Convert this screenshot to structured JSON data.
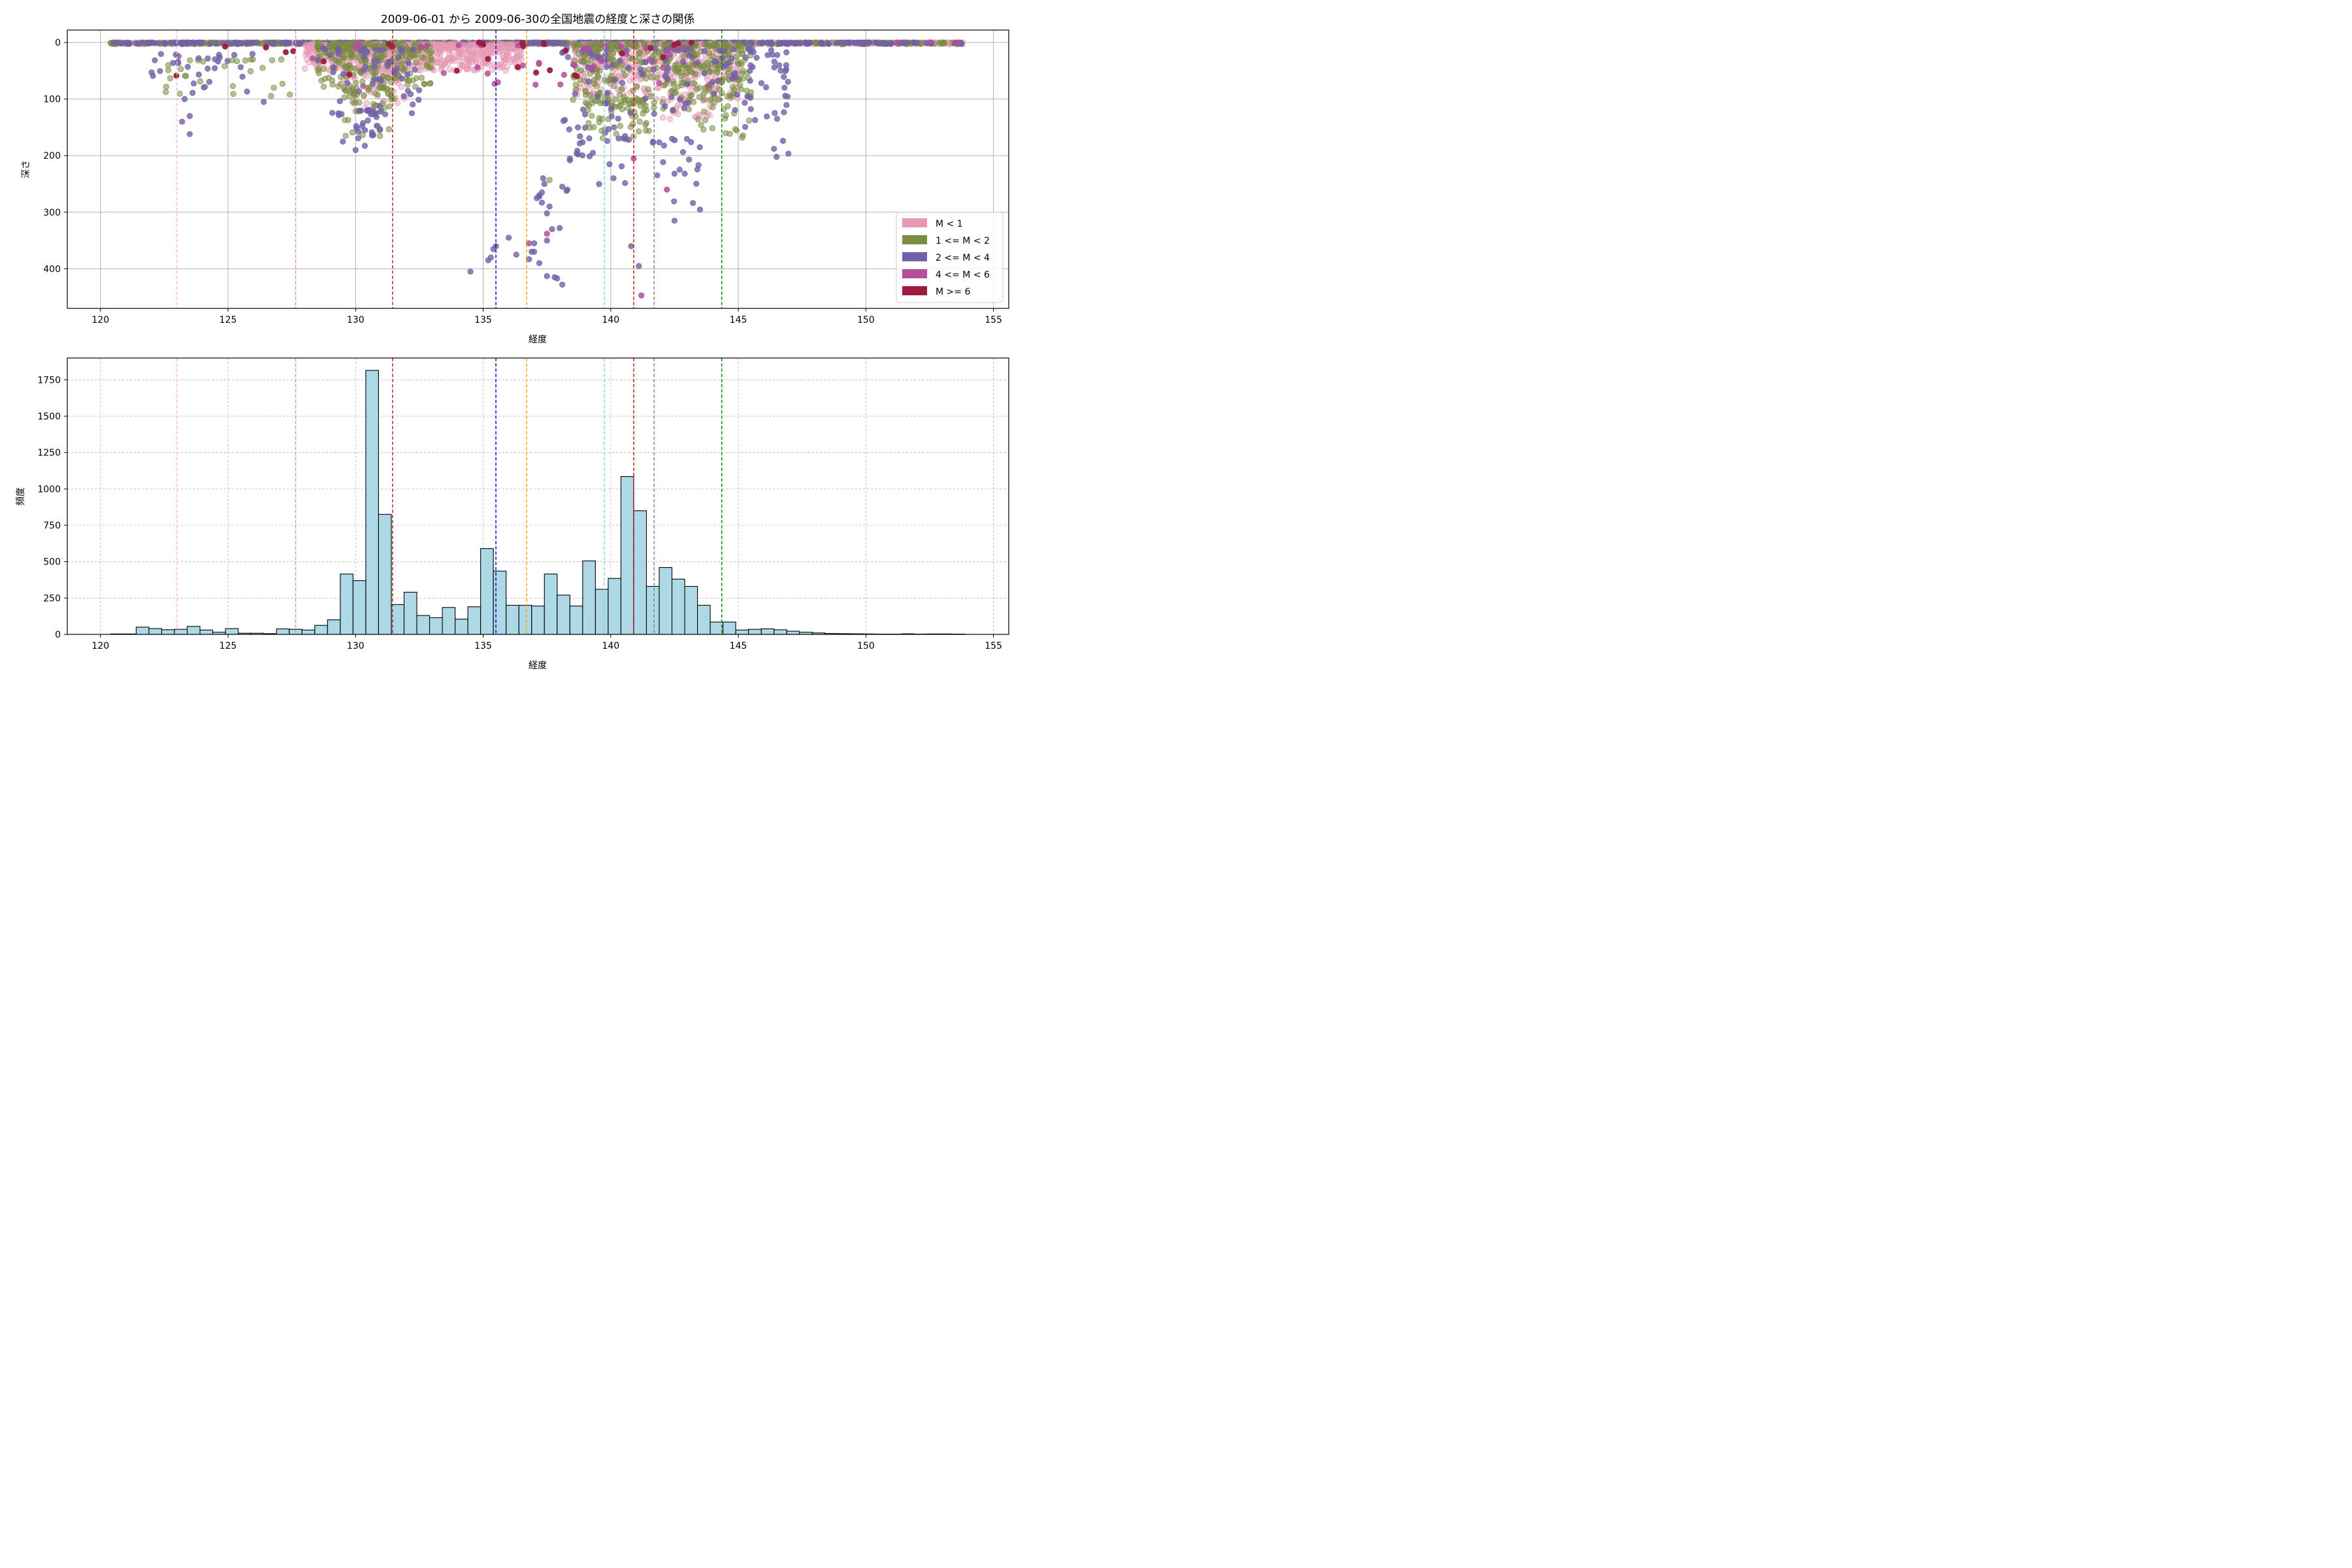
{
  "chart_data": [
    {
      "type": "scatter",
      "title": "2009-06-01 から 2009-06-30の全国地震の経度と深さの関係",
      "xlabel": "経度",
      "ylabel": "深さ",
      "xlim": [
        118.7,
        155.6
      ],
      "ylim": [
        470,
        -22
      ],
      "y_inverted": true,
      "xticks": [
        120,
        125,
        130,
        135,
        140,
        145,
        150,
        155
      ],
      "yticks": [
        0,
        100,
        200,
        300,
        400
      ],
      "grid": true,
      "legend_position": "lower-right",
      "legend": [
        {
          "label": "M < 1",
          "color": "#e599b3"
        },
        {
          "label": "1 <= M < 2",
          "color": "#7a8d42"
        },
        {
          "label": "2 <= M < 4",
          "color": "#7260a8"
        },
        {
          "label": "4 <= M < 6",
          "color": "#b44f9a"
        },
        {
          "label": "M >= 6",
          "color": "#9c1c40"
        }
      ],
      "vlines": [
        {
          "x": 123.0,
          "color": "#ffb6c8"
        },
        {
          "x": 127.65,
          "color": "#ee82ee"
        },
        {
          "x": 131.45,
          "color": "#b22222"
        },
        {
          "x": 135.5,
          "color": "#0000cd"
        },
        {
          "x": 136.7,
          "color": "#ffa500"
        },
        {
          "x": 139.75,
          "color": "#87ceeb"
        },
        {
          "x": 140.9,
          "color": "#e00000"
        },
        {
          "x": 141.7,
          "color": "#808080"
        },
        {
          "x": 144.35,
          "color": "#008000"
        }
      ],
      "point_clusters": [
        {
          "group": 0,
          "n": 900,
          "x": [
            120.4,
            153.8
          ],
          "d": [
            0,
            3
          ]
        },
        {
          "group": 1,
          "n": 500,
          "x": [
            120.4,
            153.8
          ],
          "d": [
            0,
            3
          ]
        },
        {
          "group": 2,
          "n": 300,
          "x": [
            120.4,
            153.8
          ],
          "d": [
            0,
            3
          ]
        },
        {
          "group": 0,
          "n": 700,
          "x": [
            128.0,
            136.5
          ],
          "d": [
            3,
            50
          ]
        },
        {
          "group": 0,
          "n": 500,
          "x": [
            138.5,
            145.0
          ],
          "d": [
            3,
            100
          ]
        },
        {
          "group": 0,
          "n": 80,
          "x": [
            129.5,
            132.0
          ],
          "d": [
            50,
            120
          ]
        },
        {
          "group": 0,
          "n": 30,
          "x": [
            142.0,
            144.0
          ],
          "d": [
            100,
            140
          ]
        },
        {
          "group": 1,
          "n": 250,
          "x": [
            128.5,
            133.0
          ],
          "d": [
            3,
            80
          ]
        },
        {
          "group": 1,
          "n": 50,
          "x": [
            129.5,
            131.5
          ],
          "d": [
            80,
            170
          ]
        },
        {
          "group": 1,
          "n": 350,
          "x": [
            138.5,
            145.5
          ],
          "d": [
            3,
            120
          ]
        },
        {
          "group": 1,
          "n": 60,
          "x": [
            139.0,
            141.5
          ],
          "d": [
            100,
            170
          ]
        },
        {
          "group": 1,
          "n": 60,
          "x": [
            142.0,
            145.5
          ],
          "d": [
            40,
            170
          ]
        },
        {
          "group": 1,
          "n": 30,
          "x": [
            122.5,
            127.5
          ],
          "d": [
            30,
            100
          ]
        },
        {
          "group": 2,
          "n": 120,
          "x": [
            138.0,
            147.0
          ],
          "d": [
            10,
            140
          ]
        },
        {
          "group": 2,
          "n": 60,
          "x": [
            128.5,
            132.5
          ],
          "d": [
            10,
            130
          ]
        },
        {
          "group": 2,
          "n": 30,
          "x": [
            122.0,
            126.0
          ],
          "d": [
            20,
            100
          ]
        },
        {
          "group": 2,
          "n": 25,
          "x": [
            130.0,
            131.0
          ],
          "d": [
            120,
            190
          ]
        },
        {
          "group": 2,
          "n": 30,
          "x": [
            138.2,
            140.8
          ],
          "d": [
            150,
            280
          ]
        },
        {
          "group": 2,
          "n": 20,
          "x": [
            145.2,
            147.0
          ],
          "d": [
            40,
            200
          ]
        },
        {
          "group": 2,
          "n": 20,
          "x": [
            141.5,
            143.5
          ],
          "d": [
            170,
            320
          ]
        },
        {
          "group": 3,
          "n": 40,
          "x": [
            128.0,
            144.0
          ],
          "d": [
            5,
            80
          ]
        },
        {
          "group": 4,
          "n": 30,
          "x": [
            122.5,
            145.0
          ],
          "d": [
            0,
            60
          ]
        }
      ],
      "points": [
        {
          "x": 123.2,
          "d": 140,
          "g": 2
        },
        {
          "x": 123.5,
          "d": 162,
          "g": 2
        },
        {
          "x": 123.5,
          "d": 130,
          "g": 2
        },
        {
          "x": 123.3,
          "d": 100,
          "g": 2
        },
        {
          "x": 126.4,
          "d": 105,
          "g": 2
        },
        {
          "x": 129.5,
          "d": 175,
          "g": 2
        },
        {
          "x": 130.0,
          "d": 190,
          "g": 2
        },
        {
          "x": 134.5,
          "d": 405,
          "g": 2
        },
        {
          "x": 135.2,
          "d": 385,
          "g": 2
        },
        {
          "x": 135.3,
          "d": 380,
          "g": 2
        },
        {
          "x": 135.4,
          "d": 365,
          "g": 2
        },
        {
          "x": 135.5,
          "d": 360,
          "g": 2
        },
        {
          "x": 136.0,
          "d": 345,
          "g": 2
        },
        {
          "x": 136.3,
          "d": 375,
          "g": 2
        },
        {
          "x": 136.8,
          "d": 383,
          "g": 2
        },
        {
          "x": 136.9,
          "d": 370,
          "g": 2
        },
        {
          "x": 137.0,
          "d": 370,
          "g": 2
        },
        {
          "x": 137.2,
          "d": 390,
          "g": 2
        },
        {
          "x": 137.5,
          "d": 413,
          "g": 2
        },
        {
          "x": 137.8,
          "d": 415,
          "g": 2
        },
        {
          "x": 137.9,
          "d": 417,
          "g": 2
        },
        {
          "x": 138.1,
          "d": 428,
          "g": 2
        },
        {
          "x": 137.0,
          "d": 355,
          "g": 2
        },
        {
          "x": 137.5,
          "d": 350,
          "g": 2
        },
        {
          "x": 137.7,
          "d": 330,
          "g": 2
        },
        {
          "x": 138.0,
          "d": 328,
          "g": 2
        },
        {
          "x": 137.5,
          "d": 302,
          "g": 2
        },
        {
          "x": 137.2,
          "d": 270,
          "g": 2
        },
        {
          "x": 137.3,
          "d": 265,
          "g": 2
        },
        {
          "x": 137.35,
          "d": 240,
          "g": 2
        },
        {
          "x": 137.4,
          "d": 250,
          "g": 2
        },
        {
          "x": 137.1,
          "d": 275,
          "g": 2
        },
        {
          "x": 137.3,
          "d": 283,
          "g": 2
        },
        {
          "x": 137.6,
          "d": 290,
          "g": 2
        },
        {
          "x": 137.2,
          "d": 272,
          "g": 2
        },
        {
          "x": 138.1,
          "d": 255,
          "g": 2
        },
        {
          "x": 138.3,
          "d": 260,
          "g": 2
        },
        {
          "x": 140.8,
          "d": 360,
          "g": 2
        },
        {
          "x": 141.1,
          "d": 395,
          "g": 2
        },
        {
          "x": 142.5,
          "d": 315,
          "g": 2
        },
        {
          "x": 142.5,
          "d": 232,
          "g": 2
        },
        {
          "x": 142.9,
          "d": 232,
          "g": 2
        },
        {
          "x": 146.5,
          "d": 202,
          "g": 2
        },
        {
          "x": 146.4,
          "d": 188,
          "g": 2
        },
        {
          "x": 137.6,
          "d": 243,
          "g": 1
        },
        {
          "x": 136.8,
          "d": 355,
          "g": 3
        },
        {
          "x": 137.5,
          "d": 338,
          "g": 3
        },
        {
          "x": 141.2,
          "d": 447,
          "g": 3
        },
        {
          "x": 140.9,
          "d": 205,
          "g": 3
        },
        {
          "x": 142.2,
          "d": 260,
          "g": 3
        },
        {
          "x": 130.1,
          "d": 0,
          "g": 3
        },
        {
          "x": 151.2,
          "d": 0,
          "g": 3
        },
        {
          "x": 152.5,
          "d": 0,
          "g": 3
        },
        {
          "x": 153.6,
          "d": 0,
          "g": 3
        }
      ]
    },
    {
      "type": "bar",
      "xlabel": "経度",
      "ylabel": "頻度",
      "xlim": [
        118.7,
        155.6
      ],
      "ylim": [
        0,
        1900
      ],
      "xticks": [
        120,
        125,
        130,
        135,
        140,
        145,
        150,
        155
      ],
      "yticks": [
        0,
        250,
        500,
        750,
        1000,
        1250,
        1500,
        1750
      ],
      "grid": "dashed",
      "bar_color": "#add8e6",
      "edge_color": "#000000",
      "bin_start": 120.4,
      "bin_width": 0.5,
      "values": [
        3,
        3,
        50,
        40,
        32,
        35,
        55,
        30,
        15,
        40,
        8,
        8,
        5,
        38,
        35,
        30,
        62,
        100,
        415,
        370,
        1815,
        825,
        205,
        290,
        130,
        115,
        185,
        105,
        190,
        590,
        435,
        200,
        200,
        195,
        415,
        270,
        195,
        505,
        310,
        385,
        1085,
        850,
        330,
        460,
        380,
        330,
        200,
        85,
        85,
        30,
        35,
        38,
        32,
        22,
        15,
        10,
        6,
        5,
        4,
        3,
        2,
        2,
        4,
        2,
        3,
        3,
        2
      ],
      "vlines": [
        {
          "x": 123.0,
          "color": "#ffb6c8"
        },
        {
          "x": 127.65,
          "color": "#ee82ee"
        },
        {
          "x": 131.45,
          "color": "#b22222"
        },
        {
          "x": 135.5,
          "color": "#0000cd"
        },
        {
          "x": 136.7,
          "color": "#ffa500"
        },
        {
          "x": 139.75,
          "color": "#87ceeb"
        },
        {
          "x": 140.9,
          "color": "#e00000"
        },
        {
          "x": 141.7,
          "color": "#808080"
        },
        {
          "x": 144.35,
          "color": "#008000"
        }
      ]
    }
  ]
}
